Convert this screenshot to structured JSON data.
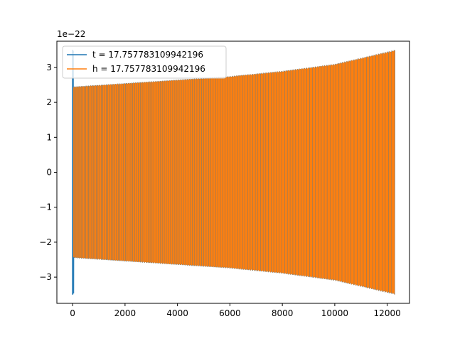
{
  "chart_data": {
    "type": "line",
    "title": "",
    "xlabel": "",
    "ylabel": "",
    "y_offset_text": "1e−22",
    "xlim": [
      -600,
      12850
    ],
    "ylim": [
      -3.75e-22,
      3.75e-22
    ],
    "xticks": [
      0,
      2000,
      4000,
      6000,
      8000,
      10000,
      12000
    ],
    "xtick_labels": [
      "0",
      "2000",
      "4000",
      "6000",
      "8000",
      "10000",
      "12000"
    ],
    "yticks": [
      -3e-22,
      -2e-22,
      -1e-22,
      0,
      1e-22,
      2e-22,
      3e-22
    ],
    "ytick_labels": [
      "−3",
      "−2",
      "−1",
      "0",
      "1",
      "2",
      "3"
    ],
    "grid": false,
    "legend_position": "top-left",
    "series": [
      {
        "name": "t = 17.757783109942196",
        "color": "#1f77b4",
        "description": "oscillating signal; initial spike at x≈0 reaching about ±3.5e-22, then envelope growing from ±2.45e-22 to ±3.5e-22",
        "x_range": [
          0,
          12290
        ],
        "envelope_x": [
          0,
          2000,
          4000,
          6000,
          8000,
          10000,
          12290
        ],
        "envelope_amplitude": [
          2.45e-22,
          2.55e-22,
          2.65e-22,
          2.75e-22,
          2.9e-22,
          3.1e-22,
          3.5e-22
        ],
        "initial_spike": 3.5e-22
      },
      {
        "name": "h = 17.757783109942196",
        "color": "#ff7f0e",
        "description": "oscillating signal with envelope growing from ±2.45e-22 to ±3.5e-22",
        "x_range": [
          0,
          12290
        ],
        "envelope_x": [
          0,
          2000,
          4000,
          6000,
          8000,
          10000,
          12290
        ],
        "envelope_amplitude": [
          2.45e-22,
          2.55e-22,
          2.65e-22,
          2.75e-22,
          2.9e-22,
          3.1e-22,
          3.5e-22
        ]
      }
    ]
  }
}
